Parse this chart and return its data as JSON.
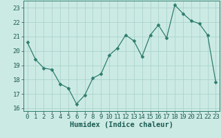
{
  "x": [
    0,
    1,
    2,
    3,
    4,
    5,
    6,
    7,
    8,
    9,
    10,
    11,
    12,
    13,
    14,
    15,
    16,
    17,
    18,
    19,
    20,
    21,
    22,
    23
  ],
  "y": [
    20.6,
    19.4,
    18.8,
    18.7,
    17.7,
    17.4,
    16.3,
    16.9,
    18.1,
    18.4,
    19.7,
    20.2,
    21.1,
    20.7,
    19.6,
    21.1,
    21.8,
    20.9,
    23.2,
    22.6,
    22.1,
    21.9,
    21.1,
    17.8
  ],
  "line_color": "#2d7d6e",
  "marker": "D",
  "marker_size": 2.5,
  "bg_color": "#cceae4",
  "grid_color": "#aad4cc",
  "xlabel": "Humidex (Indice chaleur)",
  "xlim": [
    -0.5,
    23.5
  ],
  "ylim": [
    15.8,
    23.5
  ],
  "yticks": [
    16,
    17,
    18,
    19,
    20,
    21,
    22,
    23
  ],
  "xticks": [
    0,
    1,
    2,
    3,
    4,
    5,
    6,
    7,
    8,
    9,
    10,
    11,
    12,
    13,
    14,
    15,
    16,
    17,
    18,
    19,
    20,
    21,
    22,
    23
  ],
  "tick_fontsize": 6.5,
  "xlabel_fontsize": 7.5,
  "spine_color": "#2d7d6e"
}
